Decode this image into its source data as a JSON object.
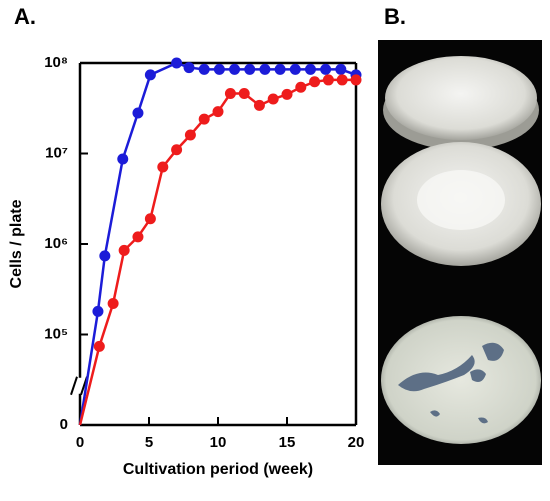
{
  "chart_data": {
    "type": "line",
    "panel_label": "A.",
    "photo_panel_label": "B.",
    "ylabel": "Cells / plate",
    "xlabel": "Cultivation period (week)",
    "log_y": true,
    "axis_break": true,
    "xlim": [
      0,
      20
    ],
    "xticks": [
      0,
      5,
      10,
      15,
      20
    ],
    "ylim": [
      0,
      100000000
    ],
    "yticks": [
      0,
      {
        "value": 100000,
        "label": "10⁵"
      },
      {
        "value": 1000000,
        "label": "10⁶"
      },
      {
        "value": 10000000,
        "label": "10⁷"
      },
      {
        "value": 100000000,
        "label": "10⁸"
      }
    ],
    "series": [
      {
        "color": "#1c1cd8",
        "x": [
          0,
          1.3,
          1.8,
          3.1,
          4.2,
          5.1,
          7.0,
          7.9,
          9.0,
          10.1,
          11.2,
          12.3,
          13.4,
          14.5,
          15.6,
          16.7,
          17.8,
          18.9,
          20
        ],
        "values": [
          0,
          180000,
          740000,
          8700000,
          28000000,
          74000000,
          100000000,
          89000000,
          85000000,
          85000000,
          85000000,
          85000000,
          85000000,
          85000000,
          85000000,
          85000000,
          85000000,
          85000000,
          74000000
        ]
      },
      {
        "color": "#ee1c1c",
        "x": [
          0,
          1.4,
          2.4,
          3.2,
          4.2,
          5.1,
          6.0,
          7.0,
          8.0,
          9.0,
          10.0,
          10.9,
          11.9,
          13.0,
          14.0,
          15.0,
          16.0,
          17.0,
          18.0,
          19.0,
          20
        ],
        "values": [
          0,
          74000,
          220000,
          850000,
          1200000,
          1900000,
          7100000,
          11000000,
          16000000,
          24000000,
          29000000,
          46000000,
          46000000,
          34000000,
          40000000,
          45000000,
          54000000,
          62000000,
          65000000,
          65000000,
          65000000
        ]
      }
    ]
  }
}
